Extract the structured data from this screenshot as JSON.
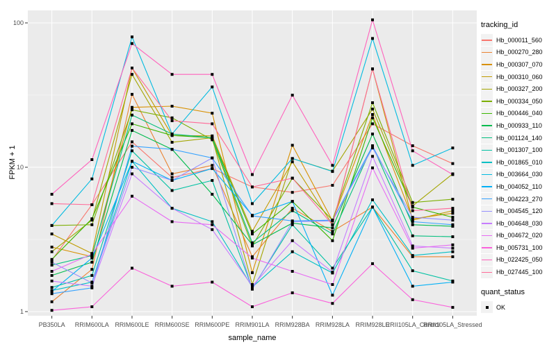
{
  "figure": {
    "panel_background": "#EBEBEB",
    "gridline_color": "#FFFFFF",
    "axis_text_color": "#4D4D4D",
    "marker_color": "#000000"
  },
  "axes": {
    "x_label": "sample_name",
    "y_label": "FPKM + 1",
    "y_tick_labels": [
      "1",
      "10",
      "100"
    ]
  },
  "legend": {
    "tracking_title": "tracking_id",
    "quant_title": "quant_status",
    "quant_items": [
      {
        "label": "OK",
        "marker": "filled-black-square"
      }
    ]
  },
  "chart_data": {
    "type": "line",
    "title": "",
    "xlabel": "sample_name",
    "ylabel": "FPKM + 1",
    "y_scale": "log10",
    "ylim": [
      0.93,
      122
    ],
    "y_major_ticks": [
      1,
      10,
      100
    ],
    "y_minor_ticks": [
      3.162,
      31.62
    ],
    "grid": "on",
    "legend_position": "right",
    "marker": "black-square",
    "categories": [
      "PB350LA",
      "RRIM600LA",
      "RRIM600LE",
      "RRIM600SE",
      "RRIM600PE",
      "RRIM901LA",
      "RRIM928BA",
      "RRIM928LA",
      "RRIM928LE",
      "RRII105LA_Control",
      "RRII105LA_Stressed"
    ],
    "series": [
      {
        "name": "Hb_000011_560",
        "color": "#F8766D",
        "values": [
          2.27,
          5.5,
          15,
          8.5,
          9.8,
          7.3,
          6.7,
          7.5,
          20,
          14.1,
          10.6
        ]
      },
      {
        "name": "Hb_000270_280",
        "color": "#EA8331",
        "values": [
          1.17,
          1.96,
          32,
          9,
          10.3,
          2.4,
          5.2,
          3.6,
          5.3,
          2.4,
          2.4
        ]
      },
      {
        "name": "Hb_000307_070",
        "color": "#D89000",
        "values": [
          2.8,
          2.4,
          26,
          26.5,
          23.7,
          1.86,
          14.2,
          4.25,
          23.2,
          4.4,
          4.8
        ]
      },
      {
        "name": "Hb_000310_060",
        "color": "#C09B00",
        "values": [
          3.45,
          2.53,
          48.7,
          16.6,
          16.5,
          3.6,
          10.9,
          4.0,
          48,
          4.3,
          5.0
        ]
      },
      {
        "name": "Hb_000327_200",
        "color": "#A3A500",
        "values": [
          2.6,
          4.3,
          44,
          14.9,
          16,
          1.54,
          11.5,
          9.4,
          25.3,
          5.4,
          9.0
        ]
      },
      {
        "name": "Hb_000334_050",
        "color": "#7CAE00",
        "values": [
          3.95,
          4.0,
          25,
          22,
          15.5,
          2.85,
          8.4,
          4.3,
          28,
          5.7,
          6.0
        ]
      },
      {
        "name": "Hb_000446_040",
        "color": "#39B600",
        "values": [
          2.3,
          4.4,
          20,
          16.6,
          16,
          3.45,
          5.8,
          3.1,
          22,
          5.3,
          4.5
        ]
      },
      {
        "name": "Hb_000933_110",
        "color": "#00BB4E",
        "values": [
          1.78,
          2.2,
          18,
          13.3,
          6.5,
          2.9,
          4.1,
          3.8,
          17,
          4.0,
          3.9
        ]
      },
      {
        "name": "Hb_001124_140",
        "color": "#00BF7D",
        "values": [
          2.1,
          2.45,
          23,
          17,
          16,
          3.0,
          5.0,
          3.45,
          14.1,
          3.35,
          3.3
        ]
      },
      {
        "name": "Hb_001307_100",
        "color": "#00C1A3",
        "values": [
          1.47,
          1.78,
          13,
          6.9,
          8.1,
          1.45,
          4.0,
          2.0,
          5.3,
          1.92,
          1.63
        ]
      },
      {
        "name": "Hb_001865_010",
        "color": "#00BFC4",
        "values": [
          1.4,
          1.6,
          11,
          5.2,
          4.2,
          1.48,
          2.6,
          1.85,
          5.95,
          2.45,
          2.6
        ]
      },
      {
        "name": "Hb_003664_030",
        "color": "#00BAE0",
        "values": [
          3.95,
          8.3,
          80,
          17,
          36,
          5.6,
          11.5,
          9.35,
          78,
          10.3,
          13.6
        ]
      },
      {
        "name": "Hb_004052_110",
        "color": "#00B0F6",
        "values": [
          1.38,
          2.35,
          11,
          8.1,
          9.8,
          4.65,
          5.8,
          1.3,
          5.3,
          1.5,
          1.6
        ]
      },
      {
        "name": "Hb_004223_270",
        "color": "#35A2FF",
        "values": [
          1.33,
          1.46,
          14,
          13.3,
          11.6,
          4.6,
          4.25,
          4.3,
          14,
          4.2,
          4.0
        ]
      },
      {
        "name": "Hb_004545_120",
        "color": "#9590FF",
        "values": [
          2.2,
          1.58,
          10,
          8.1,
          11.6,
          1.43,
          4.2,
          4.25,
          13.6,
          4.5,
          4.3
        ]
      },
      {
        "name": "Hb_004648_030",
        "color": "#C77CFF",
        "values": [
          1.63,
          1.5,
          9,
          5.2,
          3.7,
          1.5,
          3.1,
          1.88,
          11.9,
          2.85,
          2.75
        ]
      },
      {
        "name": "Hb_004672_020",
        "color": "#E76BF3",
        "values": [
          1.9,
          2.5,
          6.3,
          4.2,
          4.0,
          2.35,
          1.9,
          1.54,
          9.9,
          2.75,
          2.9
        ]
      },
      {
        "name": "Hb_005731_100",
        "color": "#FA62DB",
        "values": [
          1.02,
          1.08,
          2.0,
          1.5,
          1.6,
          1.08,
          1.35,
          1.14,
          2.15,
          1.21,
          1.07
        ]
      },
      {
        "name": "Hb_022425_050",
        "color": "#FF62BC",
        "values": [
          6.5,
          11.3,
          72,
          44,
          44,
          8.9,
          31.6,
          10.3,
          105,
          13,
          8.9
        ]
      },
      {
        "name": "Hb_027445_100",
        "color": "#FF6A98",
        "values": [
          5.6,
          5.5,
          48.7,
          21,
          20,
          7.3,
          8.4,
          4.0,
          48,
          5.0,
          5.2
        ]
      }
    ]
  }
}
